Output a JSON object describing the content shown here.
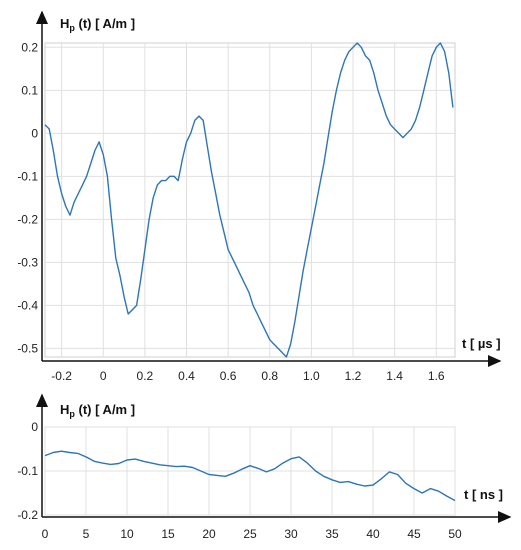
{
  "chart_data": [
    {
      "type": "line",
      "ylabel": {
        "main": "H",
        "sub": "p",
        "rest": " (t) [ A/m ]"
      },
      "xlabel": "t [ µs ]",
      "xlim": [
        -0.28,
        1.69
      ],
      "ylim": [
        -0.52,
        0.21
      ],
      "xticks": [
        -0.2,
        0,
        0.2,
        0.4,
        0.6,
        0.8,
        1.0,
        1.2,
        1.4,
        1.6
      ],
      "xtick_labels": [
        "-0.2",
        "0",
        "0.2",
        "0.4",
        "0.6",
        "0.8",
        "1.0",
        "1.2",
        "1.4",
        "1.6"
      ],
      "yticks": [
        0.2,
        0.1,
        0,
        -0.1,
        -0.2,
        -0.3,
        -0.4,
        -0.5
      ],
      "ytick_labels": [
        "0.2",
        "0.1",
        "0",
        "-0.1",
        "-0.2",
        "-0.3",
        "-0.4",
        "-0.5"
      ],
      "grid": true,
      "color": "#2e75b6",
      "series": [
        {
          "x": [
            -0.28,
            -0.26,
            -0.24,
            -0.22,
            -0.2,
            -0.18,
            -0.16,
            -0.14,
            -0.12,
            -0.1,
            -0.08,
            -0.06,
            -0.04,
            -0.02,
            0.0,
            0.02,
            0.04,
            0.06,
            0.08,
            0.1,
            0.12,
            0.14,
            0.16,
            0.18,
            0.2,
            0.22,
            0.24,
            0.26,
            0.28,
            0.3,
            0.32,
            0.34,
            0.36,
            0.38,
            0.4,
            0.42,
            0.44,
            0.46,
            0.48,
            0.5,
            0.52,
            0.54,
            0.56,
            0.58,
            0.6,
            0.62,
            0.64,
            0.66,
            0.68,
            0.7,
            0.72,
            0.74,
            0.76,
            0.78,
            0.8,
            0.82,
            0.84,
            0.86,
            0.88,
            0.9,
            0.92,
            0.94,
            0.96,
            0.98,
            1.0,
            1.02,
            1.04,
            1.06,
            1.08,
            1.1,
            1.12,
            1.14,
            1.16,
            1.18,
            1.2,
            1.22,
            1.24,
            1.26,
            1.28,
            1.3,
            1.32,
            1.34,
            1.36,
            1.38,
            1.4,
            1.42,
            1.44,
            1.46,
            1.48,
            1.5,
            1.52,
            1.54,
            1.56,
            1.58,
            1.6,
            1.62,
            1.64,
            1.66,
            1.68
          ],
          "y": [
            0.02,
            0.01,
            -0.04,
            -0.1,
            -0.14,
            -0.17,
            -0.19,
            -0.16,
            -0.14,
            -0.12,
            -0.1,
            -0.07,
            -0.04,
            -0.02,
            -0.05,
            -0.1,
            -0.2,
            -0.29,
            -0.33,
            -0.38,
            -0.42,
            -0.41,
            -0.4,
            -0.34,
            -0.27,
            -0.2,
            -0.15,
            -0.12,
            -0.11,
            -0.11,
            -0.1,
            -0.1,
            -0.11,
            -0.06,
            -0.02,
            0.0,
            0.03,
            0.04,
            0.03,
            -0.03,
            -0.09,
            -0.14,
            -0.19,
            -0.23,
            -0.27,
            -0.29,
            -0.31,
            -0.33,
            -0.35,
            -0.37,
            -0.4,
            -0.42,
            -0.44,
            -0.46,
            -0.48,
            -0.49,
            -0.5,
            -0.51,
            -0.52,
            -0.49,
            -0.44,
            -0.38,
            -0.32,
            -0.27,
            -0.22,
            -0.17,
            -0.12,
            -0.07,
            -0.01,
            0.05,
            0.1,
            0.14,
            0.17,
            0.19,
            0.2,
            0.21,
            0.2,
            0.18,
            0.17,
            0.14,
            0.1,
            0.07,
            0.04,
            0.02,
            0.01,
            0.0,
            -0.01,
            0.0,
            0.01,
            0.03,
            0.06,
            0.1,
            0.14,
            0.18,
            0.2,
            0.21,
            0.19,
            0.14,
            0.06
          ]
        }
      ]
    },
    {
      "type": "line",
      "ylabel": {
        "main": "H",
        "sub": "p",
        "rest": " (t) [ A/m ]"
      },
      "xlabel": "t [ ns ]",
      "xlim": [
        0,
        50
      ],
      "ylim": [
        -0.2,
        0
      ],
      "xticks": [
        0,
        5,
        10,
        15,
        20,
        25,
        30,
        35,
        40,
        45,
        50
      ],
      "xtick_labels": [
        "0",
        "5",
        "10",
        "15",
        "20",
        "25",
        "30",
        "35",
        "40",
        "45",
        "50"
      ],
      "yticks": [
        0,
        -0.1,
        -0.2
      ],
      "ytick_labels": [
        "0",
        "-0.1",
        "-0.2"
      ],
      "grid": true,
      "color": "#2e75b6",
      "series": [
        {
          "x": [
            0,
            1,
            2,
            3,
            4,
            5,
            6,
            7,
            8,
            9,
            10,
            11,
            12,
            13,
            14,
            15,
            16,
            17,
            18,
            19,
            20,
            21,
            22,
            23,
            24,
            25,
            26,
            27,
            28,
            29,
            30,
            31,
            32,
            33,
            34,
            35,
            36,
            37,
            38,
            39,
            40,
            41,
            42,
            43,
            44,
            45,
            46,
            47,
            48,
            49,
            50
          ],
          "y": [
            -0.065,
            -0.058,
            -0.055,
            -0.058,
            -0.06,
            -0.068,
            -0.078,
            -0.082,
            -0.085,
            -0.083,
            -0.075,
            -0.073,
            -0.078,
            -0.082,
            -0.086,
            -0.088,
            -0.09,
            -0.089,
            -0.092,
            -0.1,
            -0.108,
            -0.11,
            -0.112,
            -0.105,
            -0.096,
            -0.088,
            -0.094,
            -0.102,
            -0.095,
            -0.082,
            -0.072,
            -0.068,
            -0.082,
            -0.1,
            -0.112,
            -0.12,
            -0.126,
            -0.124,
            -0.13,
            -0.134,
            -0.132,
            -0.118,
            -0.102,
            -0.108,
            -0.128,
            -0.14,
            -0.15,
            -0.14,
            -0.146,
            -0.157,
            -0.167
          ]
        }
      ]
    }
  ]
}
